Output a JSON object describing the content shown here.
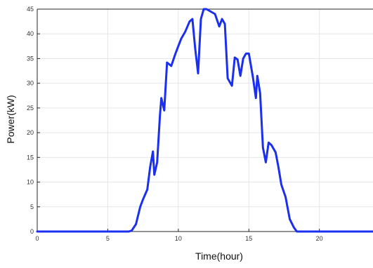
{
  "chart_data": {
    "type": "line",
    "title": "",
    "xlabel": "Time(hour)",
    "ylabel": "Power(kW)",
    "xlim": [
      0,
      23.8
    ],
    "ylim": [
      0,
      45
    ],
    "xticks": [
      0,
      5,
      10,
      15,
      20
    ],
    "yticks": [
      0,
      5,
      10,
      15,
      20,
      25,
      30,
      35,
      40,
      45
    ],
    "grid": true,
    "colors": {
      "line": "#1a2ff0",
      "grid": "#e6e6e6",
      "axis": "#262626"
    },
    "series": [
      {
        "name": "",
        "x": [
          0,
          6.5,
          6.7,
          7.0,
          7.3,
          7.5,
          7.8,
          8.0,
          8.2,
          8.3,
          8.5,
          8.7,
          8.8,
          9.0,
          9.2,
          9.5,
          9.8,
          10.0,
          10.2,
          10.5,
          10.8,
          11.0,
          11.2,
          11.4,
          11.6,
          11.8,
          12.0,
          12.3,
          12.6,
          12.9,
          13.1,
          13.3,
          13.5,
          13.8,
          14.0,
          14.2,
          14.4,
          14.6,
          14.8,
          15.0,
          15.3,
          15.5,
          15.6,
          15.8,
          16.0,
          16.2,
          16.4,
          16.6,
          16.9,
          17.1,
          17.3,
          17.6,
          17.9,
          18.2,
          18.4,
          18.6,
          19.0,
          23.8
        ],
        "y": [
          0,
          0,
          0.2,
          1.5,
          5,
          6.5,
          8.5,
          13,
          16.2,
          11.5,
          14,
          23.5,
          27,
          24.5,
          34.2,
          33.5,
          36,
          37.5,
          39,
          40.5,
          42.5,
          43,
          37,
          32,
          43,
          45,
          45,
          44.5,
          44,
          41.5,
          43,
          42,
          31,
          29.5,
          35.2,
          34.8,
          31.5,
          35,
          36,
          36,
          31,
          27,
          31.5,
          28,
          17,
          14,
          18,
          17.5,
          16,
          13,
          9.5,
          7,
          2.5,
          0.8,
          0,
          0,
          0,
          0
        ]
      }
    ]
  }
}
